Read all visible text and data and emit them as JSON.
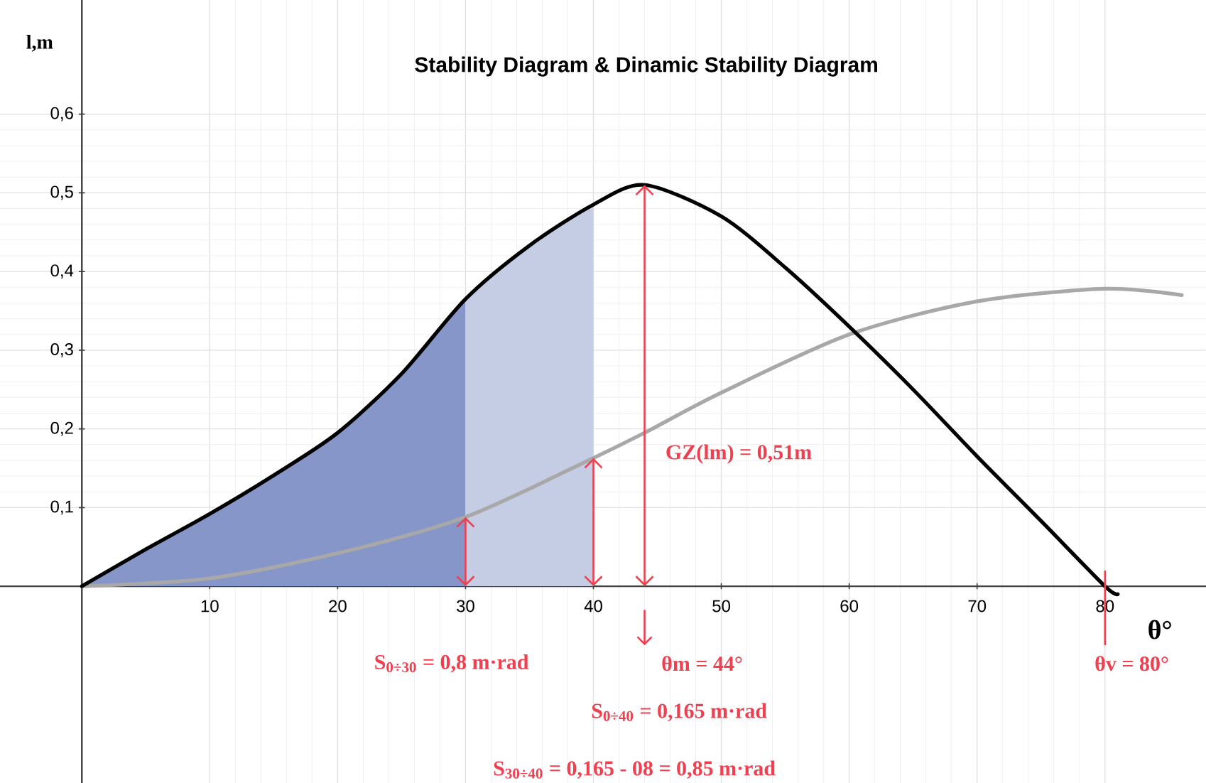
{
  "chart_data": {
    "type": "line",
    "title": "Stability Diagram & Dinamic Stability Diagram",
    "xlabel": "θ°",
    "ylabel": "l,m",
    "xlim": [
      -6.4,
      87.9
    ],
    "ylim": [
      -0.25,
      0.745
    ],
    "xticks": [
      10,
      20,
      30,
      40,
      50,
      60,
      70,
      80
    ],
    "yticks": [
      {
        "value": 0.1,
        "label": "0,1"
      },
      {
        "value": 0.2,
        "label": "0,2"
      },
      {
        "value": 0.3,
        "label": "0,3"
      },
      {
        "value": 0.4,
        "label": "0,4"
      },
      {
        "value": 0.5,
        "label": "0,5"
      },
      {
        "value": 0.6,
        "label": "0,6"
      }
    ],
    "grid": true,
    "series": [
      {
        "type": "area",
        "color": "#8796c8",
        "x": [
          0,
          5,
          10,
          15,
          20,
          25,
          30
        ],
        "values": [
          0,
          0.047,
          0.092,
          0.141,
          0.195,
          0.27,
          0.365
        ]
      },
      {
        "type": "area",
        "color": "#c5cde5",
        "x": [
          30,
          35,
          40
        ],
        "values": [
          0.365,
          0.433,
          0.485
        ]
      },
      {
        "color": "#a8a8a8",
        "x": [
          0,
          10,
          20,
          30,
          40,
          44,
          50,
          60,
          70,
          80,
          86
        ],
        "values": [
          0,
          0.01,
          0.042,
          0.088,
          0.163,
          0.195,
          0.246,
          0.32,
          0.362,
          0.378,
          0.37
        ]
      },
      {
        "color": "#000000",
        "x": [
          0,
          5,
          10,
          15,
          20,
          25,
          30,
          35,
          40,
          44,
          50,
          55,
          60,
          65,
          70,
          75,
          80,
          81
        ],
        "values": [
          0,
          0.047,
          0.092,
          0.141,
          0.195,
          0.27,
          0.365,
          0.433,
          0.485,
          0.51,
          0.47,
          0.405,
          0.33,
          0.25,
          0.165,
          0.083,
          0,
          -0.01
        ]
      }
    ],
    "annotations": [
      "GZ(lm) = 0,51m",
      "S$_{0÷30}$ = 0,8 m·rad",
      "θm = 44°",
      "S$_{0÷40}$ = 0,165 m·rad",
      "S$_{30÷40}$ = 0,165 - 08 = 0,85 m·rad",
      "θv = 80°"
    ]
  }
}
